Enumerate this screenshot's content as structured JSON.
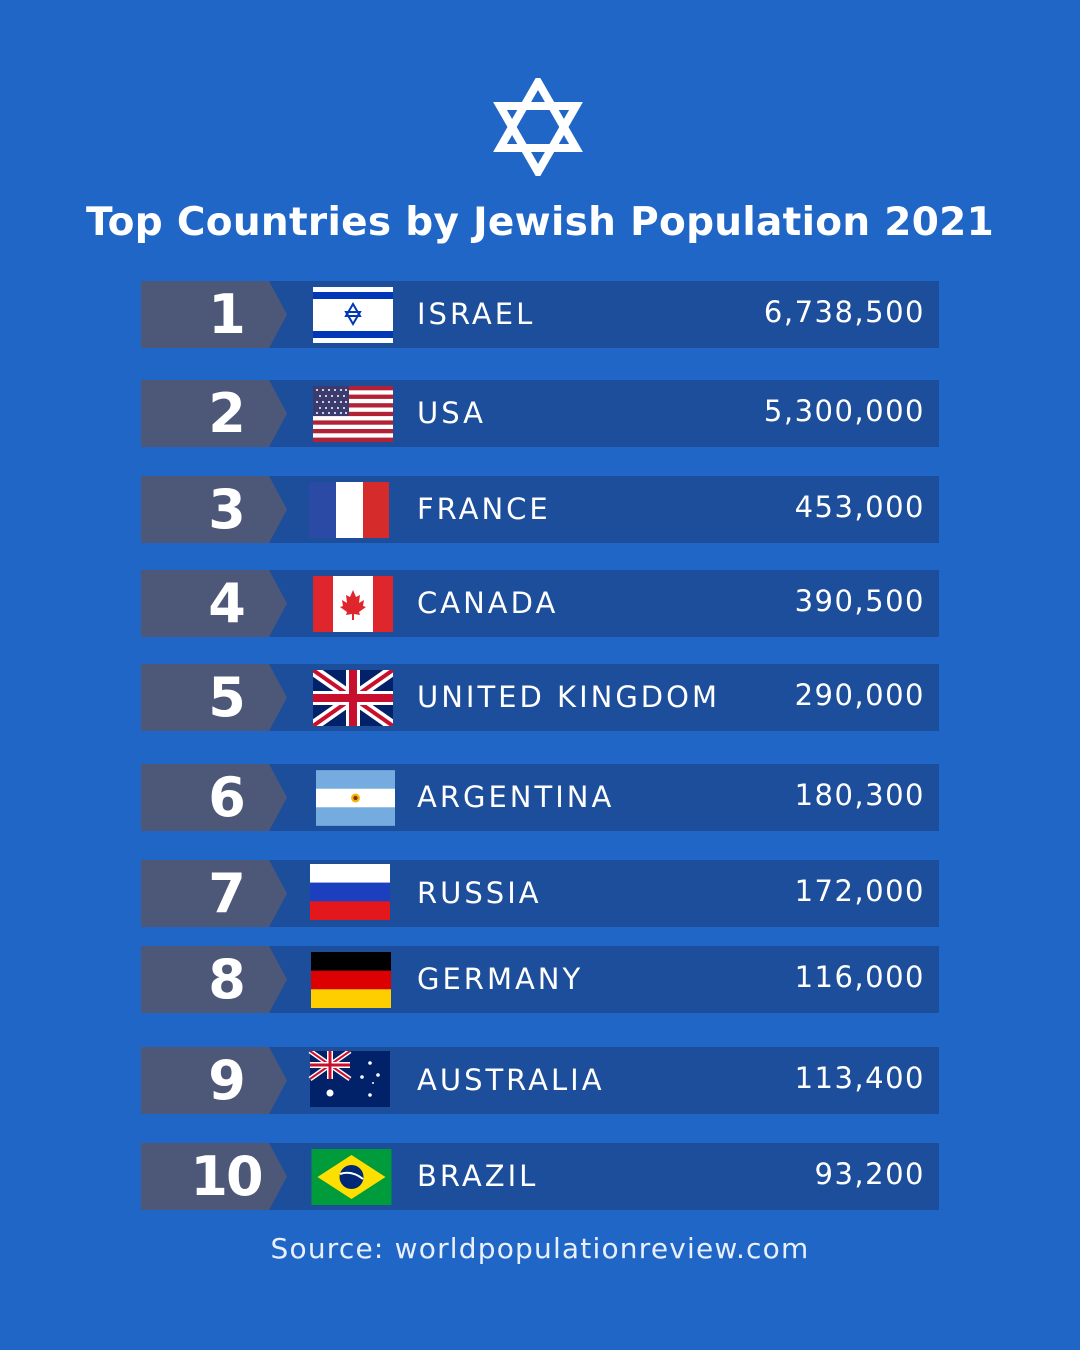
{
  "title": "Top Countries by Jewish Population 2021",
  "source": "Source: worldpopulationreview.com",
  "colors": {
    "background": "#2066c7",
    "row_bar": "#1d4e9b",
    "rank_tab": "#4d5878"
  },
  "icon": "star-of-david-icon",
  "rows": [
    {
      "rank": "1",
      "country": "ISRAEL",
      "population": "6,738,500",
      "flag": "israel-flag-icon"
    },
    {
      "rank": "2",
      "country": "USA",
      "population": "5,300,000",
      "flag": "usa-flag-icon"
    },
    {
      "rank": "3",
      "country": "FRANCE",
      "population": "453,000",
      "flag": "france-flag-icon"
    },
    {
      "rank": "4",
      "country": "CANADA",
      "population": "390,500",
      "flag": "canada-flag-icon"
    },
    {
      "rank": "5",
      "country": "UNITED KINGDOM",
      "population": "290,000",
      "flag": "uk-flag-icon"
    },
    {
      "rank": "6",
      "country": "ARGENTINA",
      "population": "180,300",
      "flag": "argentina-flag-icon"
    },
    {
      "rank": "7",
      "country": "RUSSIA",
      "population": "172,000",
      "flag": "russia-flag-icon"
    },
    {
      "rank": "8",
      "country": "GERMANY",
      "population": "116,000",
      "flag": "germany-flag-icon"
    },
    {
      "rank": "9",
      "country": "AUSTRALIA",
      "population": "113,400",
      "flag": "australia-flag-icon"
    },
    {
      "rank": "10",
      "country": "BRAZIL",
      "population": "93,200",
      "flag": "brazil-flag-icon"
    }
  ]
}
